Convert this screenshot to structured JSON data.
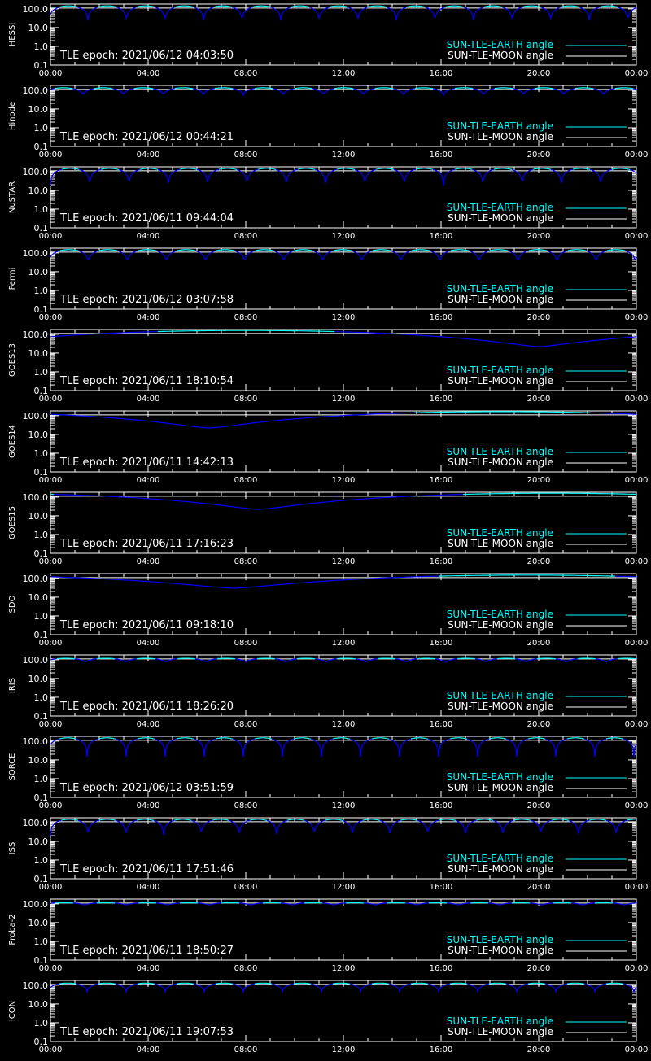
{
  "chart_data": {
    "type": "line",
    "x_tick_labels": [
      "00:00",
      "04:00",
      "08:00",
      "12:00",
      "16:00",
      "20:00",
      "00:00"
    ],
    "y_tick_labels": [
      "100.0",
      "10.0",
      "1.0",
      "0.1"
    ],
    "y_scale": "log",
    "xlim_hours": [
      0,
      24
    ],
    "ylim": [
      0.1,
      180
    ],
    "grid": false,
    "legend_placement": "bottom-right",
    "legend": [
      {
        "label": "SUN-TLE-EARTH angle",
        "color": "#00ffff"
      },
      {
        "label": "SUN-TLE-MOON angle",
        "color": "#ffffff"
      }
    ],
    "series_colors": {
      "earth_angle": "#00ffff",
      "earth_angle_low": "#0000ff",
      "moon_angle": "#ffffff"
    },
    "panels": [
      {
        "name": "HESSI",
        "epoch": "TLE epoch: 2021/06/12 04:03:50",
        "kind": "orbital",
        "period_hours": 1.58,
        "max_deg": 145,
        "min_deg": 20,
        "phase_hours": 0.05,
        "moon_deg": 110
      },
      {
        "name": "Hinode",
        "epoch": "TLE epoch: 2021/06/12 00:44:21",
        "kind": "orbital",
        "period_hours": 1.64,
        "max_deg": 135,
        "min_deg": 55,
        "phase_hours": 0.3,
        "moon_deg": 110
      },
      {
        "name": "NuSTAR",
        "epoch": "TLE epoch: 2021/06/11 09:44:04",
        "kind": "orbital",
        "period_hours": 1.61,
        "max_deg": 150,
        "min_deg": 18,
        "phase_hours": 0.0,
        "moon_deg": 110
      },
      {
        "name": "Fermi",
        "epoch": "TLE epoch: 2021/06/12 03:07:58",
        "kind": "orbital",
        "period_hours": 1.6,
        "max_deg": 150,
        "min_deg": 30,
        "phase_hours": 0.05,
        "moon_deg": 110
      },
      {
        "name": "GOES13",
        "epoch": "TLE epoch: 2021/06/11 18:10:54",
        "kind": "geo",
        "max_deg": 160,
        "min_deg": 22,
        "min_hour": 20.0,
        "moon_deg": 110
      },
      {
        "name": "GOES14",
        "epoch": "TLE epoch: 2021/06/11 14:42:13",
        "kind": "geo",
        "max_deg": 165,
        "min_deg": 22,
        "min_hour": 6.5,
        "moon_deg": 110
      },
      {
        "name": "GOES15",
        "epoch": "TLE epoch: 2021/06/11 17:16:23",
        "kind": "geo",
        "max_deg": 160,
        "min_deg": 22,
        "min_hour": 8.5,
        "moon_deg": 110
      },
      {
        "name": "SDO",
        "epoch": "TLE epoch: 2021/06/11 09:18:10",
        "kind": "geo",
        "max_deg": 150,
        "min_deg": 30,
        "min_hour": 7.5,
        "moon_deg": 110
      },
      {
        "name": "IRIS",
        "epoch": "TLE epoch: 2021/06/11 18:26:20",
        "kind": "orbital",
        "period_hours": 1.64,
        "max_deg": 120,
        "min_deg": 72,
        "phase_hours": 0.2,
        "moon_deg": 110
      },
      {
        "name": "SORCE",
        "epoch": "TLE epoch: 2021/06/12 03:51:59",
        "kind": "orbital",
        "period_hours": 1.6,
        "max_deg": 150,
        "min_deg": 15,
        "phase_hours": 0.1,
        "moon_deg": 110
      },
      {
        "name": "ISS",
        "epoch": "TLE epoch: 2021/06/11 17:51:46",
        "kind": "orbital",
        "period_hours": 1.545,
        "max_deg": 150,
        "min_deg": 18,
        "phase_hours": 0.0,
        "moon_deg": 110
      },
      {
        "name": "Proba-2",
        "epoch": "TLE epoch: 2021/06/11 18:50:27",
        "kind": "orbital",
        "period_hours": 1.7,
        "max_deg": 115,
        "min_deg": 85,
        "phase_hours": 0.3,
        "moon_deg": 110
      },
      {
        "name": "ICON",
        "epoch": "TLE epoch: 2021/06/11 19:07:53",
        "kind": "orbital",
        "period_hours": 1.6,
        "max_deg": 130,
        "min_deg": 45,
        "phase_hours": 0.1,
        "moon_deg": 110
      }
    ]
  }
}
